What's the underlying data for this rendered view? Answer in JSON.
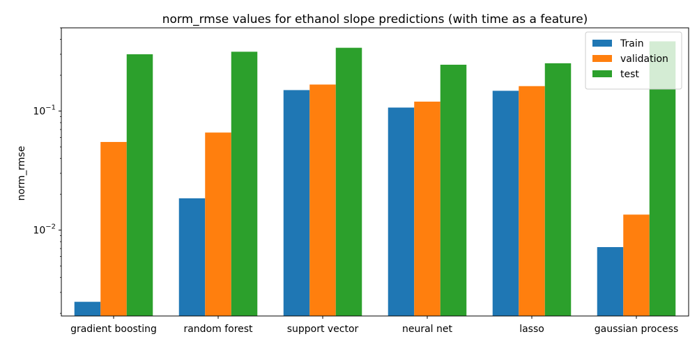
{
  "chart_data": {
    "type": "bar",
    "title": "norm_rmse values for ethanol slope predictions (with time as a feature)",
    "xlabel": "",
    "ylabel": "norm_rmse",
    "yscale": "log",
    "ylim": [
      0.0019,
      0.5
    ],
    "y_ticks": [
      {
        "value": 0.01,
        "base": "10",
        "exp": "−2"
      },
      {
        "value": 0.1,
        "base": "10",
        "exp": "−1"
      }
    ],
    "categories": [
      "gradient boosting",
      "random forest",
      "support vector",
      "neural net",
      "lasso",
      "gaussian process"
    ],
    "series": [
      {
        "name": "Train",
        "color": "#1f77b4",
        "values": [
          0.0025,
          0.0185,
          0.15,
          0.107,
          0.148,
          0.0072
        ]
      },
      {
        "name": "validation",
        "color": "#ff7f0e",
        "values": [
          0.055,
          0.066,
          0.167,
          0.12,
          0.162,
          0.0135
        ]
      },
      {
        "name": "test",
        "color": "#2ca02c",
        "values": [
          0.3,
          0.315,
          0.34,
          0.245,
          0.252,
          0.385
        ]
      }
    ],
    "legend_position": "top-right",
    "grid": false
  }
}
